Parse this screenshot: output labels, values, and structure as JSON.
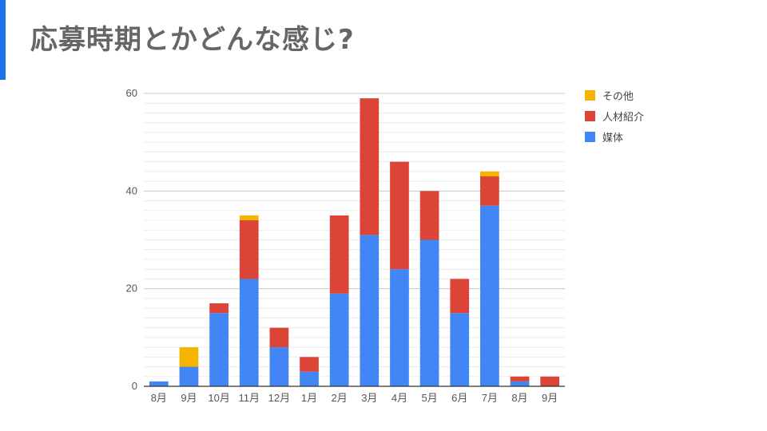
{
  "slide": {
    "title": "応募時期とかどんな感じ?",
    "accent_color": "#1a73e8"
  },
  "chart_data": {
    "type": "bar",
    "stacked": true,
    "categories": [
      "8月",
      "9月",
      "10月",
      "11月",
      "12月",
      "1月",
      "2月",
      "3月",
      "4月",
      "5月",
      "6月",
      "7月",
      "8月",
      "9月"
    ],
    "series": [
      {
        "name": "媒体",
        "color": "#4285f4",
        "values": [
          1,
          4,
          15,
          22,
          8,
          3,
          19,
          31,
          24,
          30,
          15,
          37,
          1,
          0
        ]
      },
      {
        "name": "人材紹介",
        "color": "#db4437",
        "values": [
          0,
          0,
          2,
          12,
          4,
          3,
          16,
          28,
          22,
          10,
          7,
          6,
          1,
          2
        ]
      },
      {
        "name": "その他",
        "color": "#f4b400",
        "values": [
          0,
          4,
          0,
          1,
          0,
          0,
          0,
          0,
          0,
          0,
          0,
          1,
          0,
          0
        ]
      }
    ],
    "ylim": [
      0,
      60
    ],
    "yticks": [
      0,
      20,
      40,
      60
    ],
    "grid": true,
    "legend_position": "right",
    "legend_order": [
      "その他",
      "人材紹介",
      "媒体"
    ]
  }
}
